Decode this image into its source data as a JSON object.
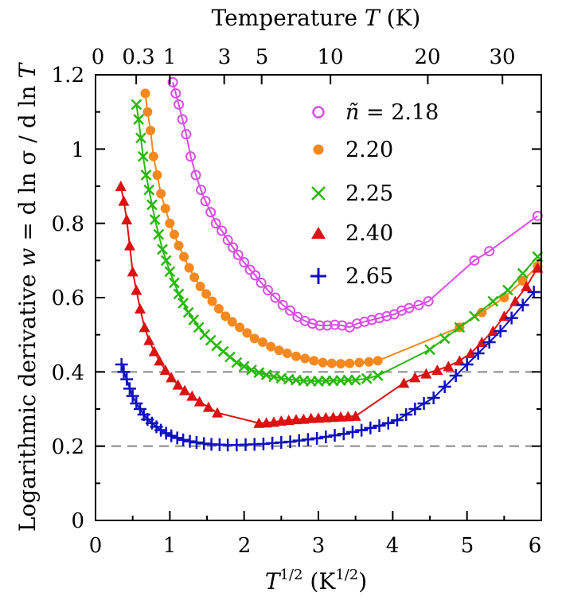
{
  "chart_data": {
    "type": "line",
    "xlabel_base": "T",
    "xlabel_exp": "1/2",
    "xlabel_unit_base": "(K",
    "xlabel_unit_exp": "1/2",
    "xlabel_unit_close": ")",
    "ylabel_prefix": "Logarithmic derivative",
    "ylabel_w": "w",
    "ylabel_mid": "= d ln σ  / d ln",
    "ylabel_T": "T",
    "top_label_prefix": "Temperature",
    "top_label_T": "T",
    "top_label_unit": "(K)",
    "xlim": [
      0,
      6
    ],
    "ylim": [
      0,
      1.2
    ],
    "x_ticks": [
      "0",
      "1",
      "2",
      "3",
      "4",
      "5",
      "6"
    ],
    "y_ticks": [
      "0",
      "0.2",
      "0.4",
      "0.6",
      "0.8",
      "1",
      "1.2"
    ],
    "top_ticks": [
      "0",
      "0.3",
      "1",
      "3",
      "5",
      "10",
      "20",
      "30"
    ],
    "reference_lines": [
      0.2,
      0.4
    ],
    "legend_prefix": "ñ =",
    "series": [
      {
        "name": "2.18",
        "color": "#d84fe6",
        "marker": "open-circle",
        "x": [
          1.04,
          1.08,
          1.12,
          1.17,
          1.22,
          1.28,
          1.35,
          1.42,
          1.48,
          1.55,
          1.62,
          1.7,
          1.78,
          1.85,
          1.92,
          2.0,
          2.08,
          2.15,
          2.23,
          2.32,
          2.42,
          2.52,
          2.62,
          2.72,
          2.82,
          2.92,
          3.02,
          3.12,
          3.22,
          3.32,
          3.42,
          3.52,
          3.62,
          3.72,
          3.82,
          3.92,
          4.02,
          4.12,
          4.22,
          4.35,
          4.48,
          5.1,
          5.3,
          5.95
        ],
        "y": [
          1.18,
          1.15,
          1.12,
          1.08,
          1.04,
          0.98,
          0.93,
          0.89,
          0.86,
          0.83,
          0.8,
          0.78,
          0.755,
          0.735,
          0.715,
          0.695,
          0.675,
          0.66,
          0.64,
          0.62,
          0.6,
          0.58,
          0.565,
          0.548,
          0.537,
          0.53,
          0.525,
          0.525,
          0.527,
          0.525,
          0.52,
          0.53,
          0.535,
          0.54,
          0.545,
          0.55,
          0.555,
          0.565,
          0.572,
          0.58,
          0.59,
          0.7,
          0.725,
          0.82
        ]
      },
      {
        "name": "2.20",
        "color": "#f5891f",
        "marker": "filled-circle",
        "x": [
          0.67,
          0.7,
          0.74,
          0.78,
          0.83,
          0.88,
          0.94,
          1.0,
          1.06,
          1.12,
          1.19,
          1.26,
          1.33,
          1.41,
          1.49,
          1.57,
          1.66,
          1.75,
          1.84,
          1.94,
          2.04,
          2.14,
          2.25,
          2.36,
          2.47,
          2.58,
          2.7,
          2.82,
          2.94,
          3.06,
          3.18,
          3.3,
          3.42,
          3.55,
          3.68,
          3.8,
          4.9,
          5.2,
          5.5,
          5.75,
          5.95
        ],
        "y": [
          1.15,
          1.1,
          1.05,
          0.98,
          0.93,
          0.88,
          0.84,
          0.8,
          0.77,
          0.74,
          0.71,
          0.68,
          0.655,
          0.63,
          0.61,
          0.59,
          0.57,
          0.55,
          0.535,
          0.52,
          0.505,
          0.49,
          0.48,
          0.468,
          0.458,
          0.45,
          0.442,
          0.436,
          0.43,
          0.425,
          0.423,
          0.422,
          0.423,
          0.425,
          0.427,
          0.43,
          0.52,
          0.56,
          0.6,
          0.645,
          0.685
        ]
      },
      {
        "name": "2.25",
        "color": "#27b80a",
        "marker": "x-cross",
        "x": [
          0.55,
          0.58,
          0.61,
          0.64,
          0.68,
          0.72,
          0.76,
          0.8,
          0.85,
          0.9,
          0.95,
          1.0,
          1.06,
          1.12,
          1.18,
          1.25,
          1.32,
          1.39,
          1.47,
          1.55,
          1.63,
          1.72,
          1.81,
          1.9,
          2.0,
          2.1,
          2.2,
          2.3,
          2.4,
          2.5,
          2.6,
          2.7,
          2.8,
          2.9,
          3.0,
          3.1,
          3.2,
          3.3,
          3.4,
          3.5,
          3.65,
          3.8,
          4.5,
          4.7,
          4.9,
          5.1,
          5.35,
          5.55,
          5.75,
          5.95
        ],
        "y": [
          1.12,
          1.08,
          1.03,
          0.98,
          0.93,
          0.89,
          0.85,
          0.81,
          0.77,
          0.73,
          0.7,
          0.67,
          0.64,
          0.61,
          0.585,
          0.56,
          0.54,
          0.52,
          0.5,
          0.485,
          0.47,
          0.455,
          0.44,
          0.425,
          0.415,
          0.405,
          0.398,
          0.392,
          0.387,
          0.383,
          0.38,
          0.378,
          0.376,
          0.375,
          0.375,
          0.376,
          0.376,
          0.377,
          0.378,
          0.378,
          0.382,
          0.39,
          0.46,
          0.49,
          0.52,
          0.55,
          0.59,
          0.62,
          0.665,
          0.71
        ]
      },
      {
        "name": "2.40",
        "color": "#dd1111",
        "marker": "filled-triangle",
        "x": [
          0.34,
          0.38,
          0.42,
          0.46,
          0.5,
          0.55,
          0.6,
          0.66,
          0.72,
          0.79,
          0.86,
          0.94,
          1.02,
          1.11,
          1.2,
          1.3,
          1.4,
          1.52,
          1.64,
          2.2,
          2.3,
          2.4,
          2.5,
          2.6,
          2.7,
          2.8,
          2.9,
          3.0,
          3.1,
          3.2,
          3.3,
          3.4,
          3.5,
          4.15,
          4.3,
          4.45,
          4.6,
          4.75,
          4.9,
          5.05,
          5.2,
          5.35,
          5.5,
          5.65,
          5.8,
          5.95
        ],
        "y": [
          0.9,
          0.86,
          0.81,
          0.74,
          0.67,
          0.62,
          0.57,
          0.52,
          0.485,
          0.455,
          0.43,
          0.405,
          0.385,
          0.365,
          0.35,
          0.335,
          0.32,
          0.305,
          0.29,
          0.262,
          0.263,
          0.265,
          0.268,
          0.27,
          0.272,
          0.273,
          0.275,
          0.276,
          0.277,
          0.278,
          0.279,
          0.28,
          0.281,
          0.37,
          0.385,
          0.395,
          0.405,
          0.415,
          0.43,
          0.45,
          0.48,
          0.51,
          0.55,
          0.59,
          0.63,
          0.68
        ]
      },
      {
        "name": "2.65",
        "color": "#1010c0",
        "marker": "plus",
        "x": [
          0.35,
          0.38,
          0.42,
          0.46,
          0.5,
          0.55,
          0.6,
          0.65,
          0.7,
          0.76,
          0.82,
          0.88,
          0.95,
          1.02,
          1.1,
          1.18,
          1.27,
          1.36,
          1.46,
          1.56,
          1.67,
          1.78,
          1.9,
          2.02,
          2.14,
          2.26,
          2.38,
          2.5,
          2.62,
          2.74,
          2.86,
          2.98,
          3.1,
          3.22,
          3.34,
          3.46,
          3.58,
          3.7,
          3.82,
          3.94,
          4.06,
          4.18,
          4.3,
          4.42,
          4.55,
          4.7,
          4.85,
          5.0,
          5.15,
          5.3,
          5.45,
          5.6,
          5.75,
          5.9
        ],
        "y": [
          0.42,
          0.4,
          0.38,
          0.355,
          0.335,
          0.315,
          0.3,
          0.285,
          0.272,
          0.262,
          0.252,
          0.243,
          0.235,
          0.228,
          0.222,
          0.217,
          0.213,
          0.21,
          0.207,
          0.205,
          0.204,
          0.203,
          0.203,
          0.204,
          0.205,
          0.206,
          0.208,
          0.21,
          0.212,
          0.215,
          0.218,
          0.221,
          0.225,
          0.229,
          0.233,
          0.238,
          0.243,
          0.249,
          0.255,
          0.262,
          0.27,
          0.285,
          0.3,
          0.315,
          0.33,
          0.36,
          0.39,
          0.42,
          0.45,
          0.48,
          0.51,
          0.545,
          0.58,
          0.615
        ]
      }
    ]
  }
}
